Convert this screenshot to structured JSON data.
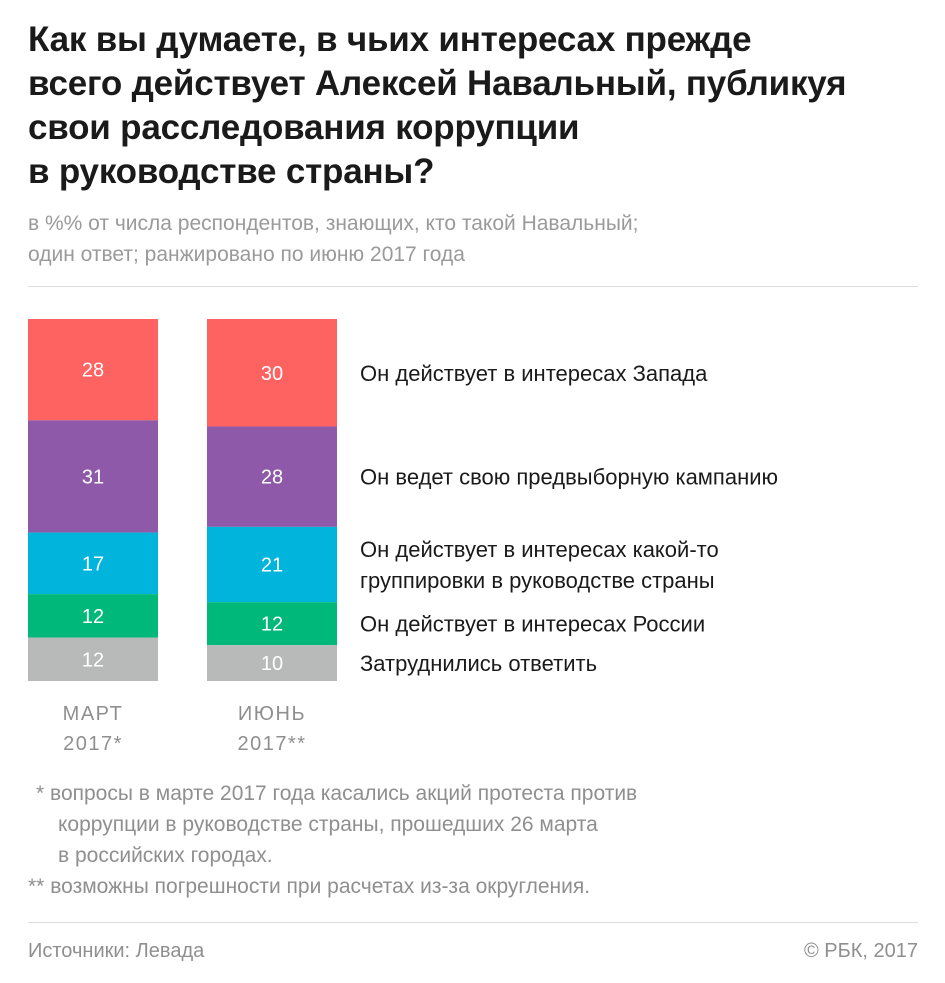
{
  "title_lines": [
    "Как вы думаете, в чьих интересах прежде",
    "всего действует Алексей Навальный, публикуя",
    "свои расследования коррупции",
    "в руководстве страны?"
  ],
  "subtitle_lines": [
    "в %% от числа респондентов, знающих, кто такой Навальный;",
    "один ответ; ранжировано по июню 2017 года"
  ],
  "chart_data": {
    "type": "bar",
    "stacked": true,
    "categories": [
      "МАРТ 2017*",
      "ИЮНЬ 2017**"
    ],
    "category_lines": [
      [
        "МАРТ",
        "2017*"
      ],
      [
        "ИЮНЬ",
        "2017**"
      ]
    ],
    "series": [
      {
        "name": "Он действует в интересах Запада",
        "label_lines": [
          "Он действует в интересах Запада"
        ],
        "color": "#ff6361",
        "values": [
          28,
          30
        ]
      },
      {
        "name": "Он ведет свою предвыборную кампанию",
        "label_lines": [
          "Он ведет свою предвыборную кампанию"
        ],
        "color": "#8e59a8",
        "values": [
          31,
          28
        ]
      },
      {
        "name": "Он действует в интересах какой-то группировки в руководстве страны",
        "label_lines": [
          "Он действует в интересах какой-то",
          "группировки в руководстве страны"
        ],
        "color": "#00b4dc",
        "values": [
          17,
          21
        ]
      },
      {
        "name": "Он действует в интересах России",
        "label_lines": [
          "Он действует в интересах России"
        ],
        "color": "#00b87a",
        "values": [
          12,
          12
        ]
      },
      {
        "name": "Затруднились ответить",
        "label_lines": [
          "Затруднились ответить"
        ],
        "color": "#b7bab8",
        "values": [
          12,
          10
        ]
      }
    ],
    "legend": "right",
    "grid": false
  },
  "footnotes": [
    {
      "marker": "*",
      "lines": [
        "вопросы в марте 2017 года касались акций протеста против",
        "коррупции в руководстве страны, прошедших 26 марта",
        "в российских городах."
      ]
    },
    {
      "marker": "**",
      "lines": [
        "возможны погрешности при расчетах из-за округления."
      ]
    }
  ],
  "source": "Источники: Левада",
  "copyright": "© РБК, 2017"
}
